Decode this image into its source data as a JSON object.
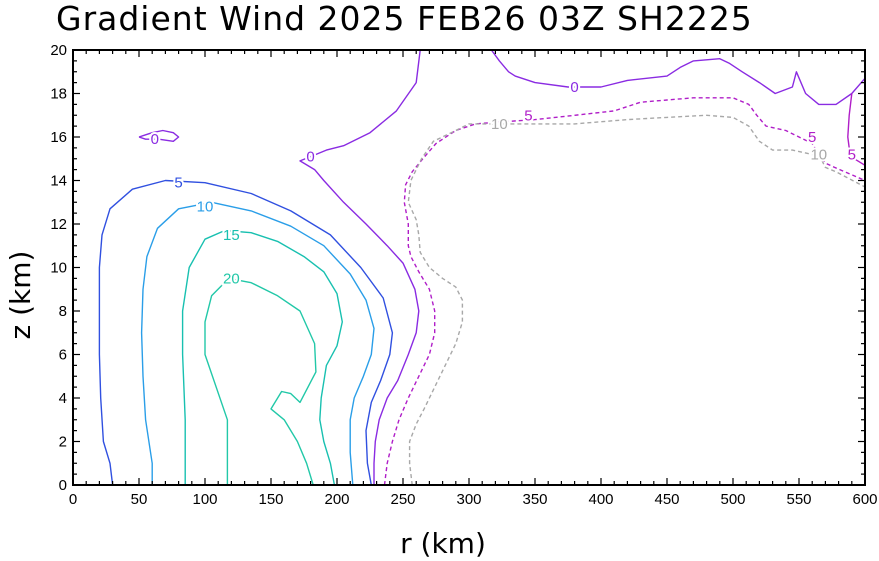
{
  "chart_data": {
    "type": "contour",
    "title": "Gradient Wind 2025 FEB26 03Z   SH2225",
    "xlabel": "r (km)",
    "ylabel": "z (km)",
    "xlim": [
      0,
      600
    ],
    "ylim": [
      0,
      20
    ],
    "xticks": [
      0,
      50,
      100,
      150,
      200,
      250,
      300,
      350,
      400,
      450,
      500,
      550,
      600
    ],
    "yticks": [
      0,
      2,
      4,
      6,
      8,
      10,
      12,
      14,
      16,
      18,
      20
    ],
    "colors": {
      "c20": "#22c8a8",
      "c15": "#18c0b0",
      "c10": "#2a9ee8",
      "c5": "#3050e0",
      "c0": "#8a2be2",
      "cm5": "#b01ec8",
      "cm10": "#a8a8a8"
    },
    "contours": [
      {
        "level": "20",
        "color_key": "c20",
        "dashed": false,
        "points": [
          [
            117,
            0
          ],
          [
            117,
            3
          ],
          [
            100,
            6
          ],
          [
            100,
            7.5
          ],
          [
            105,
            8.7
          ],
          [
            118,
            9.5
          ],
          [
            135,
            9.3
          ],
          [
            155,
            8.7
          ],
          [
            172,
            8
          ],
          [
            183,
            6.5
          ],
          [
            184,
            5.2
          ],
          [
            172,
            3.8
          ],
          [
            165,
            4.2
          ],
          [
            158,
            4.3
          ],
          [
            150,
            3.5
          ],
          [
            160,
            3
          ],
          [
            170,
            2
          ],
          [
            177,
            1
          ],
          [
            182,
            0
          ]
        ],
        "labels": [
          {
            "text": "20",
            "x": 120,
            "y": 9.5
          }
        ]
      },
      {
        "level": "15",
        "color_key": "c15",
        "dashed": false,
        "points": [
          [
            85,
            0
          ],
          [
            85,
            3
          ],
          [
            83,
            6
          ],
          [
            83,
            8
          ],
          [
            88,
            10
          ],
          [
            100,
            11.3
          ],
          [
            115,
            11.7
          ],
          [
            135,
            11.6
          ],
          [
            155,
            11.2
          ],
          [
            175,
            10.5
          ],
          [
            190,
            9.8
          ],
          [
            200,
            8.8
          ],
          [
            204,
            7.5
          ],
          [
            200,
            6.4
          ],
          [
            192,
            5.5
          ],
          [
            188,
            4
          ],
          [
            187,
            3
          ],
          [
            190,
            2
          ],
          [
            195,
            1
          ],
          [
            198,
            0
          ]
        ],
        "labels": [
          {
            "text": "15",
            "x": 120,
            "y": 11.5
          }
        ]
      },
      {
        "level": "10",
        "color_key": "c10",
        "dashed": false,
        "points": [
          [
            60,
            0
          ],
          [
            60,
            1
          ],
          [
            55,
            3
          ],
          [
            53,
            5
          ],
          [
            52,
            7
          ],
          [
            53,
            9
          ],
          [
            56,
            10.5
          ],
          [
            64,
            11.8
          ],
          [
            80,
            12.7
          ],
          [
            105,
            13
          ],
          [
            135,
            12.6
          ],
          [
            165,
            11.9
          ],
          [
            190,
            11
          ],
          [
            210,
            9.7
          ],
          [
            222,
            8.5
          ],
          [
            228,
            7.2
          ],
          [
            226,
            6
          ],
          [
            220,
            5
          ],
          [
            213,
            4
          ],
          [
            210,
            3
          ],
          [
            210,
            1.5
          ],
          [
            212,
            0
          ]
        ],
        "labels": [
          {
            "text": "10",
            "x": 100,
            "y": 12.8
          }
        ]
      },
      {
        "level": "5",
        "color_key": "c5",
        "dashed": false,
        "points": [
          [
            30,
            0
          ],
          [
            28,
            1
          ],
          [
            23,
            2
          ],
          [
            21,
            4
          ],
          [
            20,
            6
          ],
          [
            20,
            8
          ],
          [
            20,
            10
          ],
          [
            22,
            11.5
          ],
          [
            28,
            12.7
          ],
          [
            45,
            13.6
          ],
          [
            70,
            14
          ],
          [
            100,
            13.9
          ],
          [
            135,
            13.4
          ],
          [
            165,
            12.6
          ],
          [
            195,
            11.5
          ],
          [
            218,
            10
          ],
          [
            235,
            8.6
          ],
          [
            242,
            7
          ],
          [
            240,
            6
          ],
          [
            233,
            4.8
          ],
          [
            226,
            3.8
          ],
          [
            222,
            2.5
          ],
          [
            223,
            1
          ],
          [
            226,
            0
          ]
        ],
        "labels": [
          {
            "text": "5",
            "x": 80,
            "y": 13.9
          }
        ]
      },
      {
        "level": "0",
        "color_key": "c0",
        "dashed": false,
        "points": [
          [
            228,
            0
          ],
          [
            228,
            1
          ],
          [
            229,
            2
          ],
          [
            232,
            3
          ],
          [
            238,
            4
          ],
          [
            246,
            4.8
          ],
          [
            254,
            6
          ],
          [
            260,
            7
          ],
          [
            262,
            8
          ],
          [
            259,
            9
          ],
          [
            250,
            10.2
          ],
          [
            238,
            11
          ],
          [
            222,
            12
          ],
          [
            205,
            13
          ],
          [
            190,
            14
          ],
          [
            183,
            14.5
          ],
          [
            172,
            14.9
          ],
          [
            180,
            15.1
          ],
          [
            192,
            15.4
          ],
          [
            205,
            15.6
          ],
          [
            225,
            16.2
          ],
          [
            245,
            17.2
          ],
          [
            260,
            18.5
          ],
          [
            263,
            20
          ]
        ],
        "labels": [
          {
            "text": "0",
            "x": 180,
            "y": 15.1
          }
        ]
      },
      {
        "level": "0",
        "color_key": "c0",
        "dashed": false,
        "points": [
          [
            50,
            16
          ],
          [
            55,
            16.1
          ],
          [
            60,
            16.2
          ],
          [
            68,
            16.3
          ],
          [
            76,
            16.2
          ],
          [
            80,
            16
          ],
          [
            76,
            15.8
          ],
          [
            65,
            15.9
          ],
          [
            55,
            15.9
          ],
          [
            50,
            16
          ]
        ],
        "labels": [
          {
            "text": "0",
            "x": 62,
            "y": 15.9
          }
        ]
      },
      {
        "level": "0",
        "color_key": "c0",
        "dashed": false,
        "points": [
          [
            317,
            20
          ],
          [
            323,
            19.5
          ],
          [
            330,
            19
          ],
          [
            335,
            18.8
          ],
          [
            350,
            18.5
          ],
          [
            375,
            18.3
          ],
          [
            400,
            18.3
          ],
          [
            420,
            18.6
          ],
          [
            450,
            18.8
          ],
          [
            460,
            19.2
          ],
          [
            470,
            19.5
          ],
          [
            490,
            19.6
          ],
          [
            497,
            19.4
          ],
          [
            507,
            19
          ],
          [
            520,
            18.5
          ],
          [
            532,
            18
          ],
          [
            545,
            18.3
          ],
          [
            548,
            19
          ],
          [
            555,
            18
          ],
          [
            565,
            17.5
          ],
          [
            578,
            17.5
          ],
          [
            590,
            18
          ],
          [
            600,
            18.7
          ]
        ],
        "labels": [
          {
            "text": "0",
            "x": 380,
            "y": 18.3
          }
        ]
      },
      {
        "level": "-5",
        "color_key": "cm5",
        "dashed": false,
        "points": [
          [
            590,
            18
          ],
          [
            588,
            17
          ],
          [
            587,
            16
          ],
          [
            588,
            15.5
          ],
          [
            592,
            15
          ],
          [
            600,
            14.7
          ]
        ],
        "labels": [
          {
            "text": "5",
            "x": 590,
            "y": 15.2
          }
        ]
      },
      {
        "level": "-5",
        "color_key": "cm5",
        "dashed": true,
        "points": [
          [
            236,
            0
          ],
          [
            238,
            1
          ],
          [
            242,
            2
          ],
          [
            247,
            3
          ],
          [
            254,
            4
          ],
          [
            262,
            5
          ],
          [
            270,
            6
          ],
          [
            274,
            7
          ],
          [
            274,
            8
          ],
          [
            270,
            9
          ],
          [
            262,
            9.8
          ],
          [
            256,
            10.5
          ],
          [
            254,
            11
          ],
          [
            254,
            12
          ],
          [
            251,
            13
          ],
          [
            252,
            13.8
          ],
          [
            257,
            14.4
          ],
          [
            265,
            15
          ],
          [
            275,
            15.7
          ],
          [
            290,
            16.3
          ],
          [
            305,
            16.6
          ],
          [
            325,
            16.7
          ],
          [
            350,
            16.8
          ],
          [
            380,
            17
          ],
          [
            410,
            17.2
          ],
          [
            430,
            17.6
          ],
          [
            450,
            17.7
          ],
          [
            470,
            17.8
          ],
          [
            500,
            17.8
          ],
          [
            512,
            17.5
          ],
          [
            518,
            17
          ],
          [
            525,
            16.5
          ],
          [
            540,
            16.3
          ],
          [
            550,
            16
          ],
          [
            560,
            15.7
          ],
          [
            565,
            15.2
          ],
          [
            570,
            14.8
          ],
          [
            577,
            14.6
          ],
          [
            600,
            14
          ]
        ],
        "labels": [
          {
            "text": "5",
            "x": 345,
            "y": 17
          },
          {
            "text": "5",
            "x": 560,
            "y": 16
          }
        ]
      },
      {
        "level": "-10",
        "color_key": "cm10",
        "dashed": true,
        "points": [
          [
            257,
            0
          ],
          [
            255,
            1
          ],
          [
            255,
            2
          ],
          [
            260,
            2.8
          ],
          [
            266,
            3.5
          ],
          [
            274,
            4.5
          ],
          [
            282,
            5.5
          ],
          [
            290,
            6.5
          ],
          [
            295,
            7.5
          ],
          [
            295,
            8.5
          ],
          [
            290,
            9.1
          ],
          [
            280,
            9.5
          ],
          [
            270,
            10
          ],
          [
            263,
            10.7
          ],
          [
            262,
            11.5
          ],
          [
            260,
            12.2
          ],
          [
            254,
            13
          ],
          [
            256,
            14
          ],
          [
            264,
            15
          ],
          [
            273,
            15.8
          ],
          [
            290,
            16.3
          ],
          [
            300,
            16.6
          ],
          [
            325,
            16.6
          ],
          [
            350,
            16.6
          ],
          [
            380,
            16.6
          ],
          [
            420,
            16.8
          ],
          [
            450,
            16.9
          ],
          [
            480,
            17
          ],
          [
            500,
            16.9
          ],
          [
            512,
            16.5
          ],
          [
            520,
            15.8
          ],
          [
            530,
            15.4
          ],
          [
            545,
            15.4
          ],
          [
            560,
            15.2
          ],
          [
            565,
            15.2
          ],
          [
            570,
            14.6
          ],
          [
            578,
            14.4
          ],
          [
            600,
            13.7
          ]
        ],
        "labels": [
          {
            "text": "10",
            "x": 323,
            "y": 16.6
          },
          {
            "text": "10",
            "x": 565,
            "y": 15.2
          }
        ]
      }
    ]
  }
}
